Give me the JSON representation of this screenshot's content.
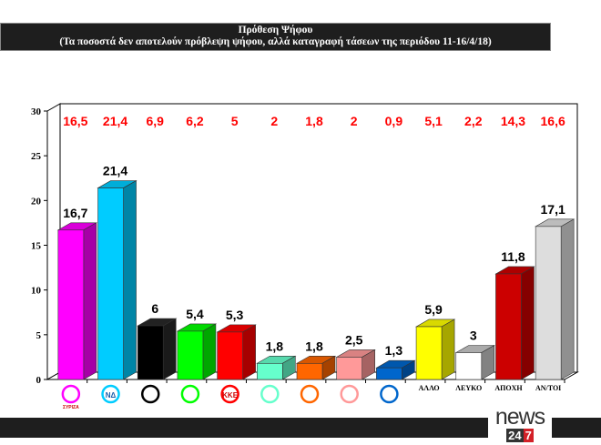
{
  "header": {
    "title": "Πρόθεση Ψήφου",
    "subtitle": "(Τα ποσοστά δεν αποτελούν πρόβλεψη ψήφου, αλλά καταγραφή τάσεων  της περιόδου 11-16/4/18)"
  },
  "brand": {
    "name": "news",
    "num1": "24",
    "num2": "7",
    "accent": "#d32027"
  },
  "chart_data": {
    "type": "bar",
    "title": "Πρόθεση Ψήφου",
    "categories": [
      "ΣΥΡΙΖΑ",
      "ΝΔ",
      "Χρυσή Αυγή (logo)",
      "ΠΑΣΟΚ/ΔΗΣΥ (logo)",
      "ΚΚΕ",
      "Logo 6",
      "Logo 7",
      "Logo 8",
      "Logo 9",
      "ΑΛΛΟ",
      "ΛΕΥΚΟ",
      "ΑΠΟΧΗ",
      "ΑΝ/ΤΟΙ"
    ],
    "category_is_logo": [
      true,
      true,
      true,
      true,
      true,
      true,
      true,
      true,
      true,
      false,
      false,
      false,
      false
    ],
    "values": [
      16.7,
      21.4,
      6,
      5.4,
      5.3,
      1.8,
      1.8,
      2.5,
      1.3,
      5.9,
      3,
      11.8,
      17.1
    ],
    "value_labels": [
      "16,7",
      "21,4",
      "6",
      "5,4",
      "5,3",
      "1,8",
      "1,8",
      "2,5",
      "1,3",
      "5,9",
      "3",
      "11,8",
      "17,1"
    ],
    "previous_labels": [
      "16,5",
      "21,4",
      "6,9",
      "6,2",
      "5",
      "2",
      "1,8",
      "2",
      "0,9",
      "5,1",
      "2,2",
      "14,3",
      "16,6"
    ],
    "previous_values": [
      16.5,
      21.4,
      6.9,
      6.2,
      5,
      2,
      1.8,
      2,
      0.9,
      5.1,
      2.2,
      14.3,
      16.6
    ],
    "colors": [
      "#ff00ff",
      "#00ccff",
      "#000000",
      "#00ff00",
      "#ff0000",
      "#66ffcc",
      "#ff6600",
      "#ff9999",
      "#0066cc",
      "#ffff00",
      "#ffffff",
      "#cc0000",
      "#dddddd"
    ],
    "previous_label_color": "#ff0000",
    "yticks": [
      "0",
      "5",
      "10",
      "15",
      "20",
      "25",
      "30"
    ],
    "ylim": [
      0,
      30
    ],
    "bar_style": "3d",
    "grid": false,
    "xlabel": "",
    "ylabel": ""
  }
}
